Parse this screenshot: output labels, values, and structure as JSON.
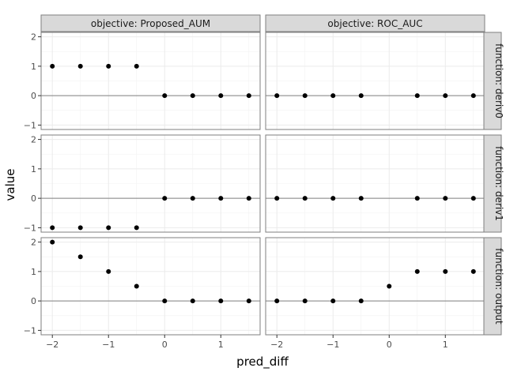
{
  "chart_data": {
    "type": "scatter",
    "xlabel": "pred_diff",
    "ylabel": "value",
    "facet_columns": [
      "objective: Proposed_AUM",
      "objective: ROC_AUC"
    ],
    "facet_rows": [
      "function: deriv0",
      "function: deriv1",
      "function: output"
    ],
    "xlim": [
      -2.2,
      1.7
    ],
    "ylim": [
      -1.15,
      2.15
    ],
    "x_ticks": [
      -2,
      -1,
      0,
      1
    ],
    "y_ticks": [
      -1,
      0,
      1,
      2
    ],
    "reference_line_y": 0,
    "grid": true,
    "point_color": "#000000",
    "panels": [
      {
        "column": 0,
        "row": 0,
        "x": [
          -2,
          -1.5,
          -1,
          -0.5,
          0,
          0.5,
          1,
          1.5
        ],
        "y": [
          1,
          1,
          1,
          1,
          0,
          0,
          0,
          0
        ]
      },
      {
        "column": 1,
        "row": 0,
        "x": [
          -2,
          -1.5,
          -1,
          -0.5,
          0.5,
          1,
          1.5
        ],
        "y": [
          0,
          0,
          0,
          0,
          0,
          0,
          0
        ]
      },
      {
        "column": 0,
        "row": 1,
        "x": [
          -2,
          -1.5,
          -1,
          -0.5,
          0,
          0.5,
          1,
          1.5
        ],
        "y": [
          -1,
          -1,
          -1,
          -1,
          0,
          0,
          0,
          0
        ]
      },
      {
        "column": 1,
        "row": 1,
        "x": [
          -2,
          -1.5,
          -1,
          -0.5,
          0.5,
          1,
          1.5
        ],
        "y": [
          0,
          0,
          0,
          0,
          0,
          0,
          0
        ]
      },
      {
        "column": 0,
        "row": 2,
        "x": [
          -2,
          -1.5,
          -1,
          -0.5,
          0,
          0.5,
          1,
          1.5
        ],
        "y": [
          2,
          1.5,
          1,
          0.5,
          0,
          0,
          0,
          0
        ]
      },
      {
        "column": 1,
        "row": 2,
        "x": [
          -2,
          -1.5,
          -1,
          -0.5,
          0,
          0.5,
          1,
          1.5
        ],
        "y": [
          0,
          0,
          0,
          0,
          0.5,
          1,
          1,
          1
        ]
      }
    ]
  }
}
